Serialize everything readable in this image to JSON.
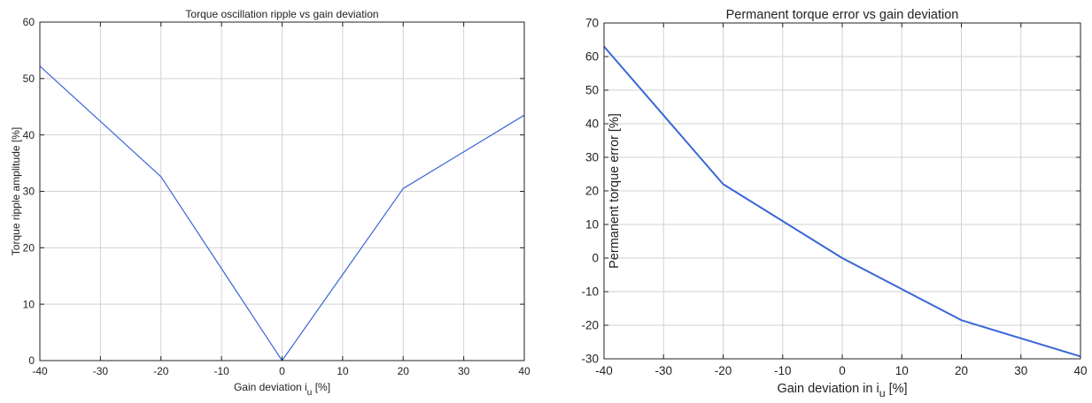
{
  "figure": {
    "background": "#ffffff",
    "line_color": "#3a66d6",
    "grid_color": "#d2d2d2",
    "axis_color": "#222222"
  },
  "chart_data": [
    {
      "type": "line",
      "title": "Torque oscillation ripple vs gain deviation",
      "xlabel": "Gain deviation i",
      "xlabel_sub": "u",
      "xlabel_unit": "[%]",
      "ylabel": "Torque ripple amplitude [%]",
      "xlim": [
        -40,
        40
      ],
      "ylim": [
        0,
        60
      ],
      "xticks": [
        -40,
        -30,
        -20,
        -10,
        0,
        10,
        20,
        30,
        40
      ],
      "yticks": [
        0,
        10,
        20,
        30,
        40,
        50,
        60
      ],
      "grid": true,
      "series": [
        {
          "x": [
            -40,
            -20,
            0,
            20,
            40
          ],
          "y": [
            52.2,
            32.6,
            0,
            30.5,
            43.5
          ]
        }
      ]
    },
    {
      "type": "line",
      "title": "Permanent torque error vs gain deviation",
      "xlabel": "Gain deviation in i",
      "xlabel_sub": "u",
      "xlabel_unit": "[%]",
      "ylabel": "Permanent torque error [%]",
      "xlim": [
        -40,
        40
      ],
      "ylim": [
        -30,
        70
      ],
      "xticks": [
        -40,
        -30,
        -20,
        -10,
        0,
        10,
        20,
        30,
        40
      ],
      "yticks": [
        -30,
        -20,
        -10,
        0,
        10,
        20,
        30,
        40,
        50,
        60,
        70
      ],
      "grid": true,
      "series": [
        {
          "x": [
            -40,
            -20,
            0,
            20,
            40
          ],
          "y": [
            63,
            22,
            0,
            -18.5,
            -29.3
          ]
        }
      ]
    }
  ]
}
